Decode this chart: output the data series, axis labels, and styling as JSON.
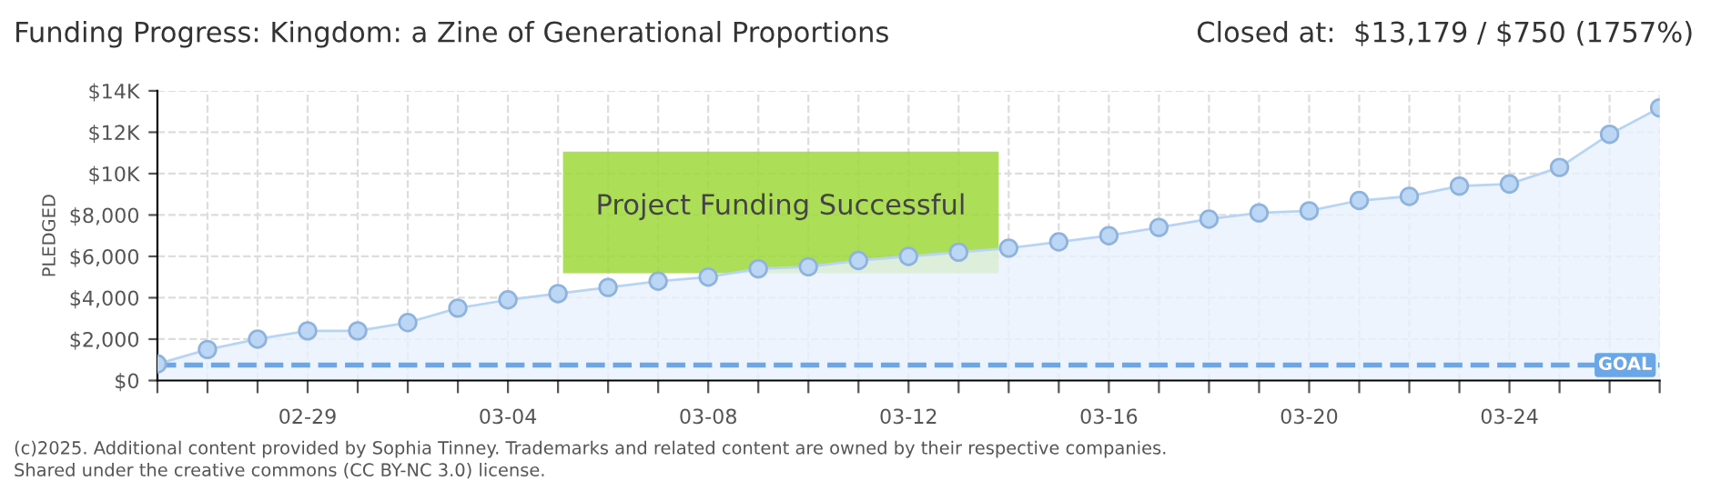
{
  "chart_data": {
    "type": "area",
    "title": "Funding Progress: Kingdom: a Zine of Generational Proportions",
    "ylabel": "PLEDGED",
    "categories": [
      null,
      null,
      null,
      "02-29",
      null,
      null,
      null,
      "03-04",
      null,
      null,
      null,
      "03-08",
      null,
      null,
      null,
      "03-12",
      null,
      null,
      null,
      "03-16",
      null,
      null,
      null,
      "03-20",
      null,
      null,
      null,
      "03-24",
      null,
      null,
      null
    ],
    "series": [
      {
        "color": "#e8f1fc",
        "values": [
          800,
          1500,
          2000,
          2400,
          2400,
          2800,
          3500,
          3900,
          4200,
          4500,
          4800,
          5000,
          5400,
          5500,
          5800,
          6000,
          6200,
          6400,
          6700,
          7000,
          7400,
          7800,
          8100,
          8200,
          8700,
          8900,
          9400,
          9500,
          10300,
          11900,
          13179
        ]
      }
    ],
    "ylim": [
      0,
      14000
    ],
    "yticks": [
      {
        "value": 0,
        "label": "$0"
      },
      {
        "value": 2000,
        "label": "$2,000"
      },
      {
        "value": 4000,
        "label": "$4,000"
      },
      {
        "value": 6000,
        "label": "$6,000"
      },
      {
        "value": 8000,
        "label": "$8,000"
      },
      {
        "value": 10000,
        "label": "$10K"
      },
      {
        "value": 12000,
        "label": "$12K"
      },
      {
        "value": 14000,
        "label": "$14K"
      }
    ],
    "ref_lines": [
      {
        "axis": "y",
        "value": 750,
        "label": "GOAL",
        "color": "#6aa6e8",
        "line_style": "dashed"
      }
    ],
    "grid": true,
    "marker": "circle",
    "annotations": [
      "Closed at:  $13,179 / $750 (1757%)",
      "Project Funding Successful",
      "(c)2025. Additional content provided by Sophia Tinney. Trademarks and related content are owned by their respective companies.",
      "Shared under the creative commons (CC BY-NC 3.0) license."
    ]
  }
}
